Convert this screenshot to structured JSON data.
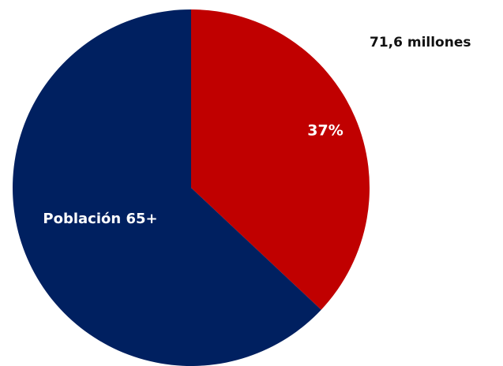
{
  "chart_data": {
    "type": "pie",
    "total_label": "71,6 millones",
    "slices": [
      {
        "label": "37%",
        "value": 37,
        "color": "#C00000"
      },
      {
        "label": "Población 65+",
        "value": 63,
        "color": "#002060"
      }
    ],
    "label_colors": {
      "slice": "#ffffff",
      "annotation": "#111111"
    }
  }
}
